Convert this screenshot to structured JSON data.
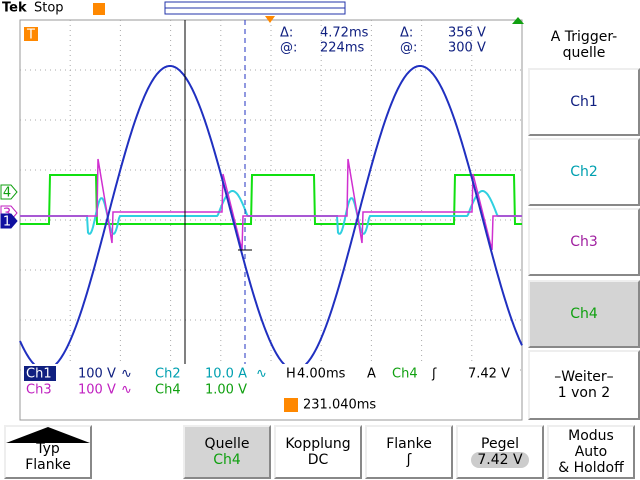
{
  "header": {
    "brand": "Tek",
    "status": "Stop"
  },
  "cursor_readout": {
    "rows": [
      [
        "Δ:",
        "4.72ms",
        "Δ:",
        "356 V"
      ],
      [
        "@:",
        "224ms",
        "@:",
        "300 V"
      ]
    ]
  },
  "channel_markers": [
    "4",
    "3",
    "1"
  ],
  "trigger_marker": "T",
  "readout": {
    "row1": [
      "Ch1",
      "100 V",
      "∿",
      "Ch2",
      "10.0 A",
      "∿",
      "H",
      "4.00ms",
      "A",
      "Ch4",
      "ʃ",
      "7.42 V"
    ],
    "row2": [
      "Ch3",
      "100 V",
      "∿",
      "Ch4",
      "1.00 V"
    ],
    "trigger_position": "231.040ms"
  },
  "side_menu": {
    "title": [
      "A Trigger-",
      "quelle"
    ],
    "items": [
      "Ch1",
      "Ch2",
      "Ch3",
      "Ch4"
    ],
    "more": [
      "–Weiter–",
      "1 von 2"
    ]
  },
  "bottom_menu": [
    {
      "lines": [
        "Typ",
        "Flanke"
      ]
    },
    {
      "lines": [
        "Quelle",
        "Ch4"
      ]
    },
    {
      "lines": [
        "Kopplung",
        "DC"
      ]
    },
    {
      "lines": [
        "Flanke",
        "ʃ"
      ]
    },
    {
      "lines": [
        "Pegel",
        "7.42 V"
      ]
    },
    {
      "lines": [
        "Modus",
        "Auto",
        "& Holdoff"
      ]
    }
  ]
}
